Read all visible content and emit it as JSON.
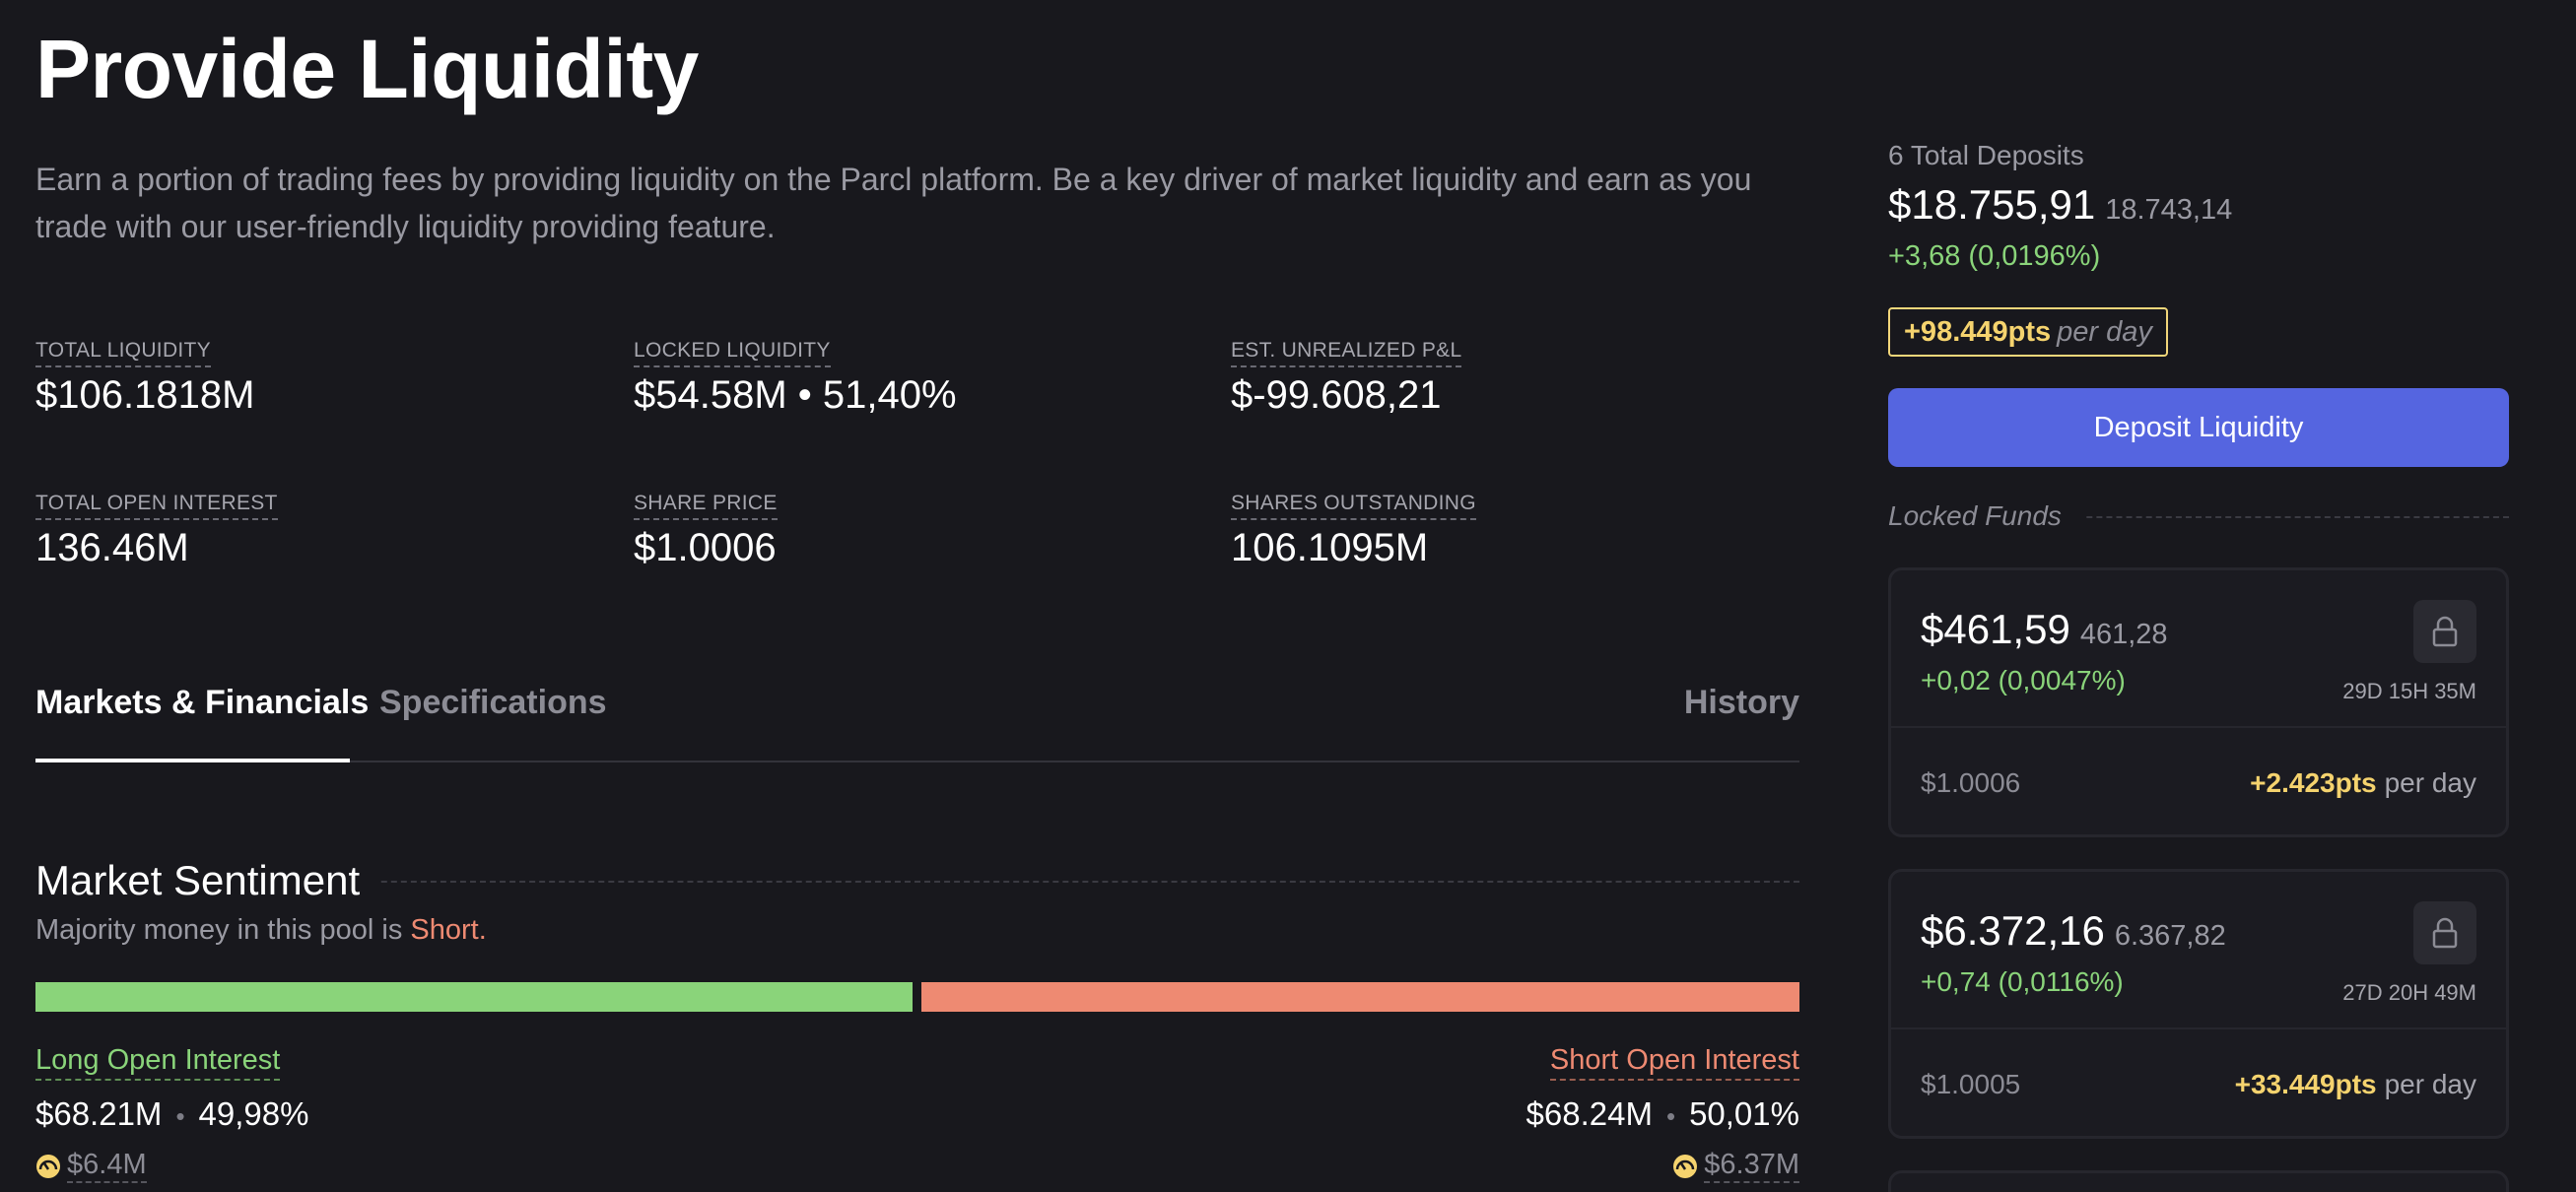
{
  "header": {
    "title": "Provide Liquidity",
    "subtitle": "Earn a portion of trading fees by providing liquidity on the Parcl platform. Be a key driver of market liquidity and earn as you trade with our user-friendly liquidity providing feature."
  },
  "stats": [
    {
      "label": "TOTAL LIQUIDITY",
      "value": "$106.1818M"
    },
    {
      "label": "LOCKED LIQUIDITY",
      "value": "$54.58M • 51,40%"
    },
    {
      "label": "EST. UNREALIZED P&L",
      "value": "$-99.608,21"
    },
    {
      "label": "TOTAL OPEN INTEREST",
      "value": "136.46M"
    },
    {
      "label": "SHARE PRICE",
      "value": "$1.0006"
    },
    {
      "label": "SHARES OUTSTANDING",
      "value": "106.1095M"
    }
  ],
  "tabs": [
    {
      "label": "Markets & Financials",
      "active": true
    },
    {
      "label": "Specifications",
      "active": false
    },
    {
      "label": "History",
      "active": false
    }
  ],
  "sentiment": {
    "title": "Market Sentiment",
    "subtitle_prefix": "Majority money in this pool is ",
    "subtitle_side": "Short.",
    "long_share": 49.98,
    "short_share": 50.01,
    "long": {
      "label": "Long Open Interest",
      "amount": "$68.21M",
      "percent": "49,98%",
      "extra": "$6.4M"
    },
    "short": {
      "label": "Short Open Interest",
      "amount": "$68.24M",
      "percent": "50,01%",
      "extra": "$6.37M"
    },
    "colors": {
      "long": "#8ad47a",
      "short": "#ee8a72"
    }
  },
  "deposits": {
    "label": "6 Total Deposits",
    "total": "$18.755,91",
    "total_sub": "18.743,14",
    "change": "+3,68 (0,0196%)",
    "points": "+98.449pts",
    "points_suffix": "per day",
    "button_label": "Deposit Liquidity",
    "locked_label": "Locked Funds"
  },
  "funds": [
    {
      "amount": "$461,59",
      "amount_sub": "461,28",
      "change": "+0,02 (0,0047%)",
      "time": "29D 15H 35M",
      "price": "$1.0006",
      "points": "+2.423pts",
      "points_suffix": "per day"
    },
    {
      "amount": "$6.372,16",
      "amount_sub": "6.367,82",
      "change": "+0,74 (0,0116%)",
      "time": "27D 20H 49M",
      "price": "$1.0005",
      "points": "+33.449pts",
      "points_suffix": "per day"
    }
  ],
  "icons": {
    "lock": "lock-icon",
    "gauge": "gauge-icon"
  },
  "colors": {
    "accent": "#5565e0",
    "points": "#f5d36e",
    "positive": "#8ad47a",
    "negative": "#ee8a72"
  }
}
